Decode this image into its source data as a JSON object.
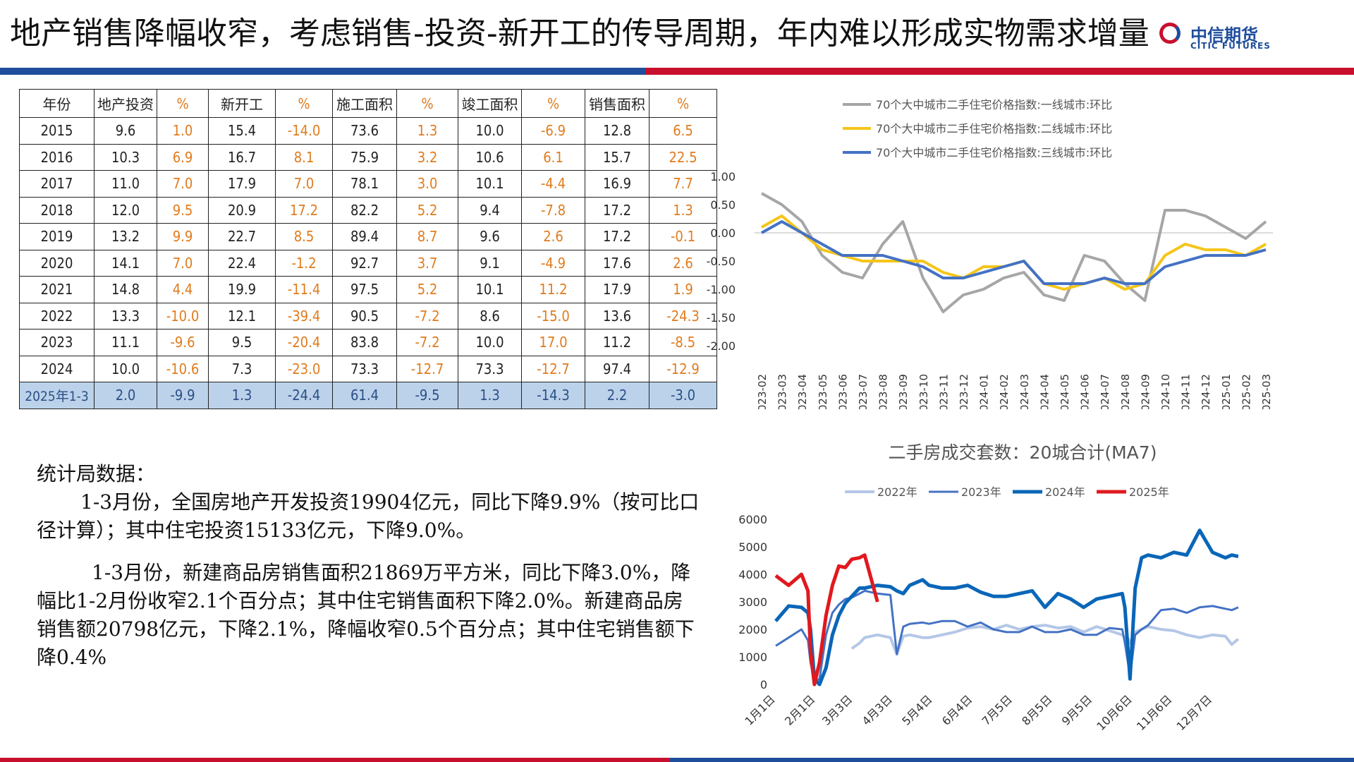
{
  "title": "地产销售降幅收窄，考虑销售-投资-新开工的传导周期，年内难以形成实物需求增量",
  "logo": {
    "cn": "中信期货",
    "en": "CITIC FUTURES"
  },
  "table": {
    "headers": [
      "年份",
      "地产投资",
      "%",
      "新开工",
      "%",
      "施工面积",
      "%",
      "竣工面积",
      "%",
      "销售面积",
      "%"
    ],
    "rows": [
      [
        "2015",
        "9.6",
        "1.0",
        "15.4",
        "-14.0",
        "73.6",
        "1.3",
        "10.0",
        "-6.9",
        "12.8",
        "6.5"
      ],
      [
        "2016",
        "10.3",
        "6.9",
        "16.7",
        "8.1",
        "75.9",
        "3.2",
        "10.6",
        "6.1",
        "15.7",
        "22.5"
      ],
      [
        "2017",
        "11.0",
        "7.0",
        "17.9",
        "7.0",
        "78.1",
        "3.0",
        "10.1",
        "-4.4",
        "16.9",
        "7.7"
      ],
      [
        "2018",
        "12.0",
        "9.5",
        "20.9",
        "17.2",
        "82.2",
        "5.2",
        "9.4",
        "-7.8",
        "17.2",
        "1.3"
      ],
      [
        "2019",
        "13.2",
        "9.9",
        "22.7",
        "8.5",
        "89.4",
        "8.7",
        "9.6",
        "2.6",
        "17.2",
        "-0.1"
      ],
      [
        "2020",
        "14.1",
        "7.0",
        "22.4",
        "-1.2",
        "92.7",
        "3.7",
        "9.1",
        "-4.9",
        "17.6",
        "2.6"
      ],
      [
        "2021",
        "14.8",
        "4.4",
        "19.9",
        "-11.4",
        "97.5",
        "5.2",
        "10.1",
        "11.2",
        "17.9",
        "1.9"
      ],
      [
        "2022",
        "13.3",
        "-10.0",
        "12.1",
        "-39.4",
        "90.5",
        "-7.2",
        "8.6",
        "-15.0",
        "13.6",
        "-24.3"
      ],
      [
        "2023",
        "11.1",
        "-9.6",
        "9.5",
        "-20.4",
        "83.8",
        "-7.2",
        "10.0",
        "17.0",
        "11.2",
        "-8.5"
      ],
      [
        "2024",
        "10.0",
        "-10.6",
        "7.3",
        "-23.0",
        "73.3",
        "-12.7",
        "73.3",
        "-12.7",
        "97.4",
        "-12.9"
      ],
      [
        "2025年1-3",
        "2.0",
        "-9.9",
        "1.3",
        "-24.4",
        "61.4",
        "-9.5",
        "1.3",
        "-14.3",
        "2.2",
        "-3.0"
      ]
    ]
  },
  "notes": {
    "heading": "统计局数据：",
    "p1": "1-3月份，全国房地产开发投资19904亿元，同比下降9.9%（按可比口径计算）；其中住宅投资15133亿元，下降9.0%。",
    "p2": "1-3月份，新建商品房销售面积21869万平方米，同比下降3.0%，降幅比1-2月份收窄2.1个百分点；其中住宅销售面积下降2.0%。新建商品房销售额20798亿元，下降2.1%，降幅收窄0.5个百分点；其中住宅销售额下降0.4%"
  },
  "chart_data": [
    {
      "type": "line",
      "title": "",
      "x": [
        "2023-02",
        "2023-03",
        "2023-04",
        "2023-05",
        "2023-06",
        "2023-07",
        "2023-08",
        "2023-09",
        "2023-10",
        "2023-11",
        "2023-12",
        "2024-01",
        "2024-02",
        "2024-03",
        "2024-04",
        "2024-05",
        "2024-06",
        "2024-07",
        "2024-08",
        "2024-09",
        "2024-10",
        "2024-11",
        "2024-12",
        "2025-01",
        "2025-02",
        "2025-03"
      ],
      "ylim": [
        -2.0,
        1.0
      ],
      "yticks": [
        "1.00",
        "0.50",
        "0.00",
        "-0.50",
        "-1.00",
        "-1.50",
        "-2.00"
      ],
      "legend_position": "top",
      "series": [
        {
          "name": "70个大中城市二手住宅价格指数:一线城市:环比",
          "color": "#a6a6a6",
          "values": [
            0.7,
            0.5,
            0.2,
            -0.4,
            -0.7,
            -0.8,
            -0.2,
            0.2,
            -0.8,
            -1.4,
            -1.1,
            -1.0,
            -0.8,
            -0.7,
            -1.1,
            -1.2,
            -0.4,
            -0.5,
            -0.9,
            -1.2,
            0.4,
            0.4,
            0.3,
            0.1,
            -0.1,
            0.2
          ]
        },
        {
          "name": "70个大中城市二手住宅价格指数:二线城市:环比",
          "color": "#f5c518",
          "values": [
            0.1,
            0.3,
            0.0,
            -0.3,
            -0.4,
            -0.5,
            -0.5,
            -0.5,
            -0.5,
            -0.7,
            -0.8,
            -0.6,
            -0.6,
            -0.5,
            -0.9,
            -1.0,
            -0.9,
            -0.8,
            -1.0,
            -0.9,
            -0.4,
            -0.2,
            -0.3,
            -0.3,
            -0.4,
            -0.2
          ]
        },
        {
          "name": "70个大中城市二手住宅价格指数:三线城市:环比",
          "color": "#4472c4",
          "values": [
            0.0,
            0.2,
            0.0,
            -0.2,
            -0.4,
            -0.4,
            -0.4,
            -0.5,
            -0.6,
            -0.8,
            -0.8,
            -0.7,
            -0.6,
            -0.5,
            -0.9,
            -0.9,
            -0.9,
            -0.8,
            -0.9,
            -0.9,
            -0.6,
            -0.5,
            -0.4,
            -0.4,
            -0.4,
            -0.3
          ]
        }
      ]
    },
    {
      "type": "line",
      "title": "二手房成交套数：20城合计(MA7)",
      "ylim": [
        0,
        6000
      ],
      "yticks": [
        "0",
        "1000",
        "2000",
        "3000",
        "4000",
        "5000",
        "6000"
      ],
      "xticks": [
        "1月1日",
        "2月1日",
        "3月3日",
        "4月3日",
        "5月4日",
        "6月4日",
        "7月5日",
        "8月5日",
        "9月5日",
        "10月6日",
        "11月6日",
        "12月7日"
      ],
      "x_day_of_year": [
        1,
        11,
        21,
        26,
        28,
        31,
        35,
        40,
        45,
        50,
        55,
        60,
        66,
        70,
        80,
        90,
        95,
        100,
        105,
        115,
        120,
        130,
        140,
        150,
        160,
        170,
        180,
        190,
        200,
        210,
        220,
        230,
        240,
        250,
        260,
        270,
        272,
        274,
        276,
        280,
        285,
        290,
        300,
        310,
        320,
        330,
        340,
        350,
        355,
        360
      ],
      "legend_position": "top",
      "series": [
        {
          "name": "2022年",
          "color": "#b4c7e7",
          "width": 4,
          "values": [
            null,
            null,
            null,
            null,
            null,
            null,
            null,
            null,
            null,
            null,
            null,
            1300,
            1500,
            1700,
            1800,
            1700,
            1100,
            1750,
            1800,
            1700,
            1700,
            1800,
            1900,
            2050,
            2100,
            2000,
            2150,
            2000,
            2100,
            2150,
            2050,
            2100,
            1900,
            2100,
            1950,
            1800,
            1700,
            1700,
            1500,
            1900,
            2000,
            2100,
            2000,
            1950,
            1800,
            1700,
            1800,
            1750,
            1450,
            1650
          ]
        },
        {
          "name": "2023年",
          "color": "#4472c4",
          "width": 3,
          "values": [
            1400,
            1700,
            2000,
            1600,
            800,
            100,
            200,
            1800,
            2600,
            2900,
            3100,
            3150,
            3300,
            3400,
            3300,
            3250,
            1100,
            2100,
            2200,
            2250,
            2200,
            2300,
            2300,
            2100,
            2250,
            2000,
            1900,
            1900,
            2100,
            1900,
            1900,
            2000,
            1800,
            1800,
            2050,
            2000,
            1500,
            900,
            300,
            1800,
            2000,
            2150,
            2700,
            2750,
            2600,
            2800,
            2850,
            2750,
            2700,
            2800
          ]
        },
        {
          "name": "2024年",
          "color": "#0a66b8",
          "width": 5,
          "values": [
            2300,
            2850,
            2800,
            2600,
            2000,
            200,
            0,
            600,
            1800,
            2500,
            2950,
            3200,
            3500,
            3500,
            3600,
            3550,
            3400,
            3300,
            3600,
            3800,
            3600,
            3500,
            3500,
            3600,
            3350,
            3200,
            3200,
            3300,
            3400,
            2800,
            3300,
            3100,
            2800,
            3100,
            3200,
            3300,
            2800,
            1500,
            200,
            3500,
            4600,
            4700,
            4600,
            4800,
            4700,
            5600,
            4800,
            4600,
            4700,
            4650
          ]
        },
        {
          "name": "2025年",
          "color": "#e0191f",
          "width": 5,
          "values": [
            3950,
            3600,
            4000,
            3400,
            1200,
            0,
            800,
            2500,
            3600,
            4300,
            4250,
            4550,
            4600,
            4700,
            3000,
            null,
            null,
            null,
            null,
            null,
            null,
            null,
            null,
            null,
            null,
            null,
            null,
            null,
            null,
            null,
            null,
            null,
            null,
            null,
            null,
            null,
            null,
            null,
            null,
            null,
            null,
            null,
            null,
            null,
            null,
            null,
            null,
            null,
            null,
            null
          ]
        }
      ]
    }
  ]
}
